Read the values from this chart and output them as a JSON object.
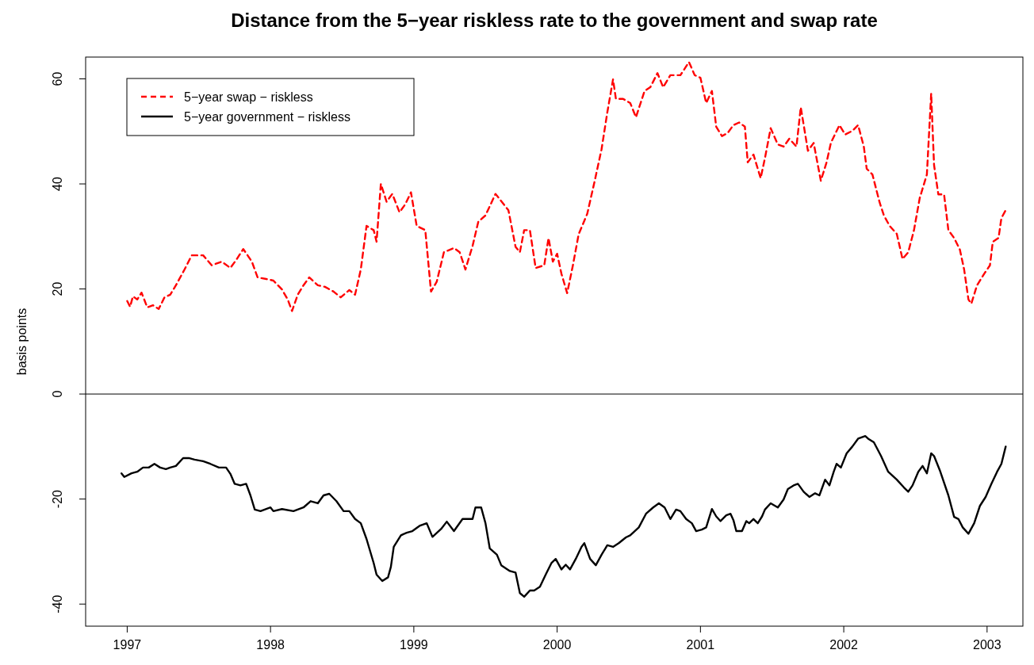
{
  "chart_data": {
    "type": "line",
    "title": "Distance from the 5−year riskless rate to the government and swap rate",
    "ylabel": "basis points",
    "xlim": [
      1996.71,
      2003.25
    ],
    "xticks": [
      1997,
      1998,
      1999,
      2000,
      2001,
      2002,
      2003
    ],
    "ylim": [
      -44.2,
      64.15
    ],
    "yticks": [
      -40,
      -20,
      0,
      20,
      40,
      60
    ],
    "grid": false,
    "legend": "top left",
    "marker": "none",
    "ref_lines": [
      {
        "axis": "y",
        "value": 0,
        "color": "#000000",
        "line_style": "solid"
      }
    ],
    "series": [
      {
        "name": "5−year swap − riskless",
        "color": "#ff0000",
        "line_style": "dashed",
        "x": [
          1997.0,
          1997.02,
          1997.04,
          1997.07,
          1997.1,
          1997.14,
          1997.18,
          1997.22,
          1997.26,
          1997.3,
          1997.34,
          1997.4,
          1997.45,
          1997.53,
          1997.59,
          1997.66,
          1997.72,
          1997.76,
          1997.81,
          1997.87,
          1997.91,
          1997.97,
          1998.02,
          1998.08,
          1998.12,
          1998.15,
          1998.19,
          1998.23,
          1998.27,
          1998.33,
          1998.38,
          1998.44,
          1998.49,
          1998.55,
          1998.59,
          1998.63,
          1998.67,
          1998.72,
          1998.74,
          1998.77,
          1998.81,
          1998.85,
          1998.9,
          1998.94,
          1998.98,
          1999.02,
          1999.08,
          1999.12,
          1999.16,
          1999.21,
          1999.28,
          1999.32,
          1999.36,
          1999.41,
          1999.45,
          1999.5,
          1999.57,
          1999.66,
          1999.71,
          1999.74,
          1999.77,
          1999.81,
          1999.85,
          1999.91,
          1999.94,
          1999.97,
          2000.0,
          2000.03,
          2000.07,
          2000.11,
          2000.15,
          2000.21,
          2000.26,
          2000.31,
          2000.35,
          2000.39,
          2000.41,
          2000.46,
          2000.51,
          2000.55,
          2000.61,
          2000.65,
          2000.7,
          2000.74,
          2000.79,
          2000.86,
          2000.92,
          2000.96,
          2001.0,
          2001.04,
          2001.08,
          2001.11,
          2001.15,
          2001.19,
          2001.23,
          2001.27,
          2001.31,
          2001.33,
          2001.37,
          2001.42,
          2001.45,
          2001.49,
          2001.54,
          2001.58,
          2001.62,
          2001.67,
          2001.7,
          2001.75,
          2001.79,
          2001.84,
          2001.88,
          2001.91,
          2001.97,
          2002.01,
          2002.06,
          2002.1,
          2002.14,
          2002.16,
          2002.2,
          2002.25,
          2002.28,
          2002.32,
          2002.37,
          2002.41,
          2002.45,
          2002.49,
          2002.53,
          2002.58,
          2002.61,
          2002.63,
          2002.66,
          2002.7,
          2002.73,
          2002.77,
          2002.81,
          2002.84,
          2002.87,
          2002.89,
          2002.93,
          2002.98,
          2003.02,
          2003.04,
          2003.08,
          2003.1,
          2003.13
        ],
        "values": [
          17.7,
          16.6,
          18.6,
          18,
          19.3,
          16.5,
          16.9,
          16.2,
          18.4,
          18.9,
          20.7,
          23.7,
          26.4,
          26.4,
          24.5,
          25.2,
          24,
          25.5,
          27.6,
          25.2,
          22.2,
          21.9,
          21.6,
          19.9,
          18,
          15.8,
          18.9,
          20.7,
          22.2,
          20.7,
          20.4,
          19.5,
          18.4,
          19.8,
          18.9,
          23.7,
          32,
          31.2,
          29,
          40,
          36.6,
          38.1,
          34.6,
          36.1,
          38.4,
          32,
          31.2,
          19.5,
          21.4,
          27,
          27.8,
          27,
          23.7,
          28.2,
          32.8,
          34,
          38.1,
          35,
          28,
          27,
          31.2,
          31.2,
          24,
          24.5,
          29.7,
          25.2,
          26.7,
          22.9,
          19.2,
          24.5,
          30.4,
          34.3,
          40.3,
          46.6,
          53.6,
          59.9,
          56.2,
          56.2,
          55.4,
          52.7,
          57.7,
          58.4,
          61.1,
          58.4,
          60.7,
          60.7,
          63.2,
          60.7,
          60.2,
          55.4,
          57.7,
          50.9,
          49.1,
          49.7,
          51.2,
          51.7,
          50.9,
          44.1,
          45.6,
          41.1,
          44.9,
          50.6,
          47.5,
          47.1,
          48.6,
          47.1,
          54.6,
          46.3,
          47.8,
          40.6,
          44.1,
          47.8,
          51.2,
          49.4,
          50.1,
          51.2,
          47.1,
          42.9,
          41.8,
          36.5,
          34,
          32,
          30.5,
          25.7,
          27,
          31.2,
          37.3,
          41.8,
          57.2,
          43.6,
          38,
          38,
          31.2,
          29.7,
          27.5,
          23.7,
          18,
          17.2,
          20.7,
          22.9,
          24.5,
          29,
          29.7,
          33.5,
          35
        ]
      },
      {
        "name": "5−year government − riskless",
        "color": "#000000",
        "line_style": "solid",
        "x": [
          1996.96,
          1996.98,
          1997.03,
          1997.07,
          1997.11,
          1997.15,
          1997.19,
          1997.23,
          1997.27,
          1997.3,
          1997.34,
          1997.39,
          1997.43,
          1997.47,
          1997.53,
          1997.58,
          1997.64,
          1997.69,
          1997.72,
          1997.75,
          1997.79,
          1997.83,
          1997.86,
          1997.89,
          1997.93,
          1998.0,
          1998.02,
          1998.08,
          1998.16,
          1998.23,
          1998.28,
          1998.33,
          1998.37,
          1998.41,
          1998.46,
          1998.51,
          1998.55,
          1998.59,
          1998.63,
          1998.67,
          1998.72,
          1998.74,
          1998.78,
          1998.82,
          1998.84,
          1998.86,
          1998.91,
          1998.95,
          1998.99,
          1999.04,
          1999.09,
          1999.13,
          1999.19,
          1999.23,
          1999.28,
          1999.34,
          1999.41,
          1999.43,
          1999.47,
          1999.5,
          1999.53,
          1999.58,
          1999.61,
          1999.67,
          1999.71,
          1999.74,
          1999.77,
          1999.81,
          1999.84,
          1999.88,
          1999.92,
          1999.96,
          1999.99,
          2000.03,
          2000.06,
          2000.09,
          2000.13,
          2000.17,
          2000.19,
          2000.23,
          2000.27,
          2000.31,
          2000.35,
          2000.39,
          2000.43,
          2000.48,
          2000.51,
          2000.57,
          2000.62,
          2000.67,
          2000.71,
          2000.75,
          2000.79,
          2000.83,
          2000.86,
          2000.9,
          2000.94,
          2000.97,
          2001.01,
          2001.04,
          2001.08,
          2001.11,
          2001.14,
          2001.18,
          2001.21,
          2001.23,
          2001.25,
          2001.29,
          2001.32,
          2001.34,
          2001.37,
          2001.4,
          2001.43,
          2001.45,
          2001.49,
          2001.54,
          2001.58,
          2001.61,
          2001.65,
          2001.68,
          2001.72,
          2001.76,
          2001.8,
          2001.83,
          2001.87,
          2001.9,
          2001.93,
          2001.95,
          2001.98,
          2002.02,
          2002.06,
          2002.1,
          2002.15,
          2002.17,
          2002.21,
          2002.26,
          2002.31,
          2002.37,
          2002.42,
          2002.45,
          2002.48,
          2002.52,
          2002.55,
          2002.58,
          2002.61,
          2002.63,
          2002.67,
          2002.73,
          2002.77,
          2002.8,
          2002.83,
          2002.87,
          2002.91,
          2002.95,
          2002.99,
          2003.03,
          2003.07,
          2003.1,
          2003.13
        ],
        "values": [
          -15.1,
          -15.8,
          -15.1,
          -14.8,
          -14,
          -14,
          -13.3,
          -14,
          -14.3,
          -14,
          -13.7,
          -12.2,
          -12.2,
          -12.5,
          -12.8,
          -13.3,
          -14,
          -14,
          -15.2,
          -17.1,
          -17.4,
          -17.1,
          -19.3,
          -22,
          -22.3,
          -21.6,
          -22.3,
          -21.9,
          -22.3,
          -21.6,
          -20.4,
          -20.8,
          -19.3,
          -19,
          -20.4,
          -22.3,
          -22.3,
          -23.8,
          -24.6,
          -27.6,
          -32.2,
          -34.4,
          -35.6,
          -34.9,
          -32.9,
          -29.1,
          -26.9,
          -26.4,
          -26.1,
          -25.1,
          -24.6,
          -27.2,
          -25.7,
          -24.3,
          -26.1,
          -23.8,
          -23.8,
          -21.6,
          -21.6,
          -24.6,
          -29.4,
          -30.6,
          -32.6,
          -33.7,
          -34,
          -37.9,
          -38.6,
          -37.4,
          -37.4,
          -36.7,
          -34.4,
          -32.2,
          -31.4,
          -33.4,
          -32.5,
          -33.4,
          -31.4,
          -29.1,
          -28.4,
          -31.4,
          -32.6,
          -30.6,
          -28.8,
          -29.1,
          -28.4,
          -27.3,
          -26.9,
          -25.4,
          -22.8,
          -21.6,
          -20.8,
          -21.6,
          -23.8,
          -22,
          -22.3,
          -23.8,
          -24.6,
          -26.1,
          -25.8,
          -25.4,
          -21.9,
          -23.3,
          -24.2,
          -23.1,
          -22.8,
          -24,
          -26.1,
          -26.1,
          -24.2,
          -24.6,
          -23.8,
          -24.6,
          -23.3,
          -22,
          -20.8,
          -21.6,
          -20.1,
          -18.1,
          -17.4,
          -17.1,
          -18.6,
          -19.6,
          -18.9,
          -19.3,
          -16.3,
          -17.4,
          -14.8,
          -13.3,
          -14,
          -11.3,
          -10,
          -8.5,
          -8,
          -8.5,
          -9.2,
          -11.8,
          -14.8,
          -16.3,
          -17.8,
          -18.6,
          -17.4,
          -14.8,
          -13.7,
          -15.1,
          -11.3,
          -11.8,
          -14.5,
          -19.3,
          -23.4,
          -23.8,
          -25.4,
          -26.6,
          -24.6,
          -21.3,
          -19.6,
          -17.1,
          -14.8,
          -13.3,
          -10
        ]
      }
    ]
  }
}
